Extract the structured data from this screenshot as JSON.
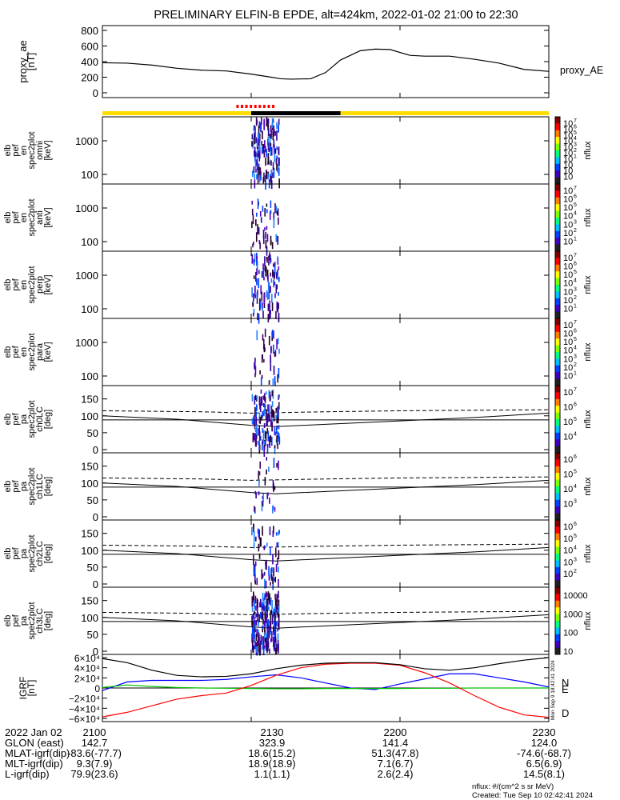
{
  "title": "PRELIMINARY ELFIN-B EPDE, alt=424km, 2022-01-02 21:00 to 22:30",
  "time_range": [
    "21:00",
    "22:30"
  ],
  "chart_data": [
    {
      "id": "proxy_ae",
      "type": "line",
      "ylabel": [
        "proxy_ae",
        "[nT]"
      ],
      "legend": "proxy_AE",
      "ylim": [
        0,
        800
      ],
      "yticks": [
        "800",
        "600",
        "400",
        "200",
        "0"
      ],
      "x_minutes": [
        0,
        5,
        10,
        15,
        20,
        25,
        30,
        33,
        36,
        38,
        42,
        45,
        48,
        52,
        55,
        58,
        62,
        65,
        70,
        75,
        80,
        85,
        90
      ],
      "values": [
        385,
        380,
        355,
        315,
        290,
        280,
        240,
        210,
        180,
        175,
        180,
        260,
        420,
        540,
        560,
        555,
        480,
        470,
        470,
        430,
        380,
        300,
        275
      ]
    },
    {
      "id": "flags",
      "type": "bar",
      "description_values": {
        "yellow": [
          0,
          90
        ],
        "black": [
          30,
          48
        ],
        "red_dashed": [
          27,
          35
        ]
      }
    },
    {
      "id": "spec_omni",
      "type": "heatmap",
      "ylabel": [
        "elb",
        "pef",
        "en",
        "spec2plot",
        "omni",
        "[keV]"
      ],
      "yticks": [
        "1000",
        "100"
      ],
      "colorbar": {
        "label": "nflux",
        "ticks": [
          "10",
          "10",
          "10",
          "10",
          "10",
          "10",
          "10",
          "10",
          "10",
          "10"
        ],
        "exps": [
          "7",
          "6",
          "5",
          "4",
          "3",
          "2",
          "1",
          "",
          "",
          ""
        ]
      }
    },
    {
      "id": "spec_anti",
      "type": "heatmap",
      "ylabel": [
        "elb",
        "pef",
        "en",
        "spec2plot",
        "anti",
        "[keV]"
      ],
      "yticks": [
        "1000",
        "100"
      ],
      "colorbar": {
        "label": "nflux",
        "exps": [
          "7",
          "6",
          "5",
          "4",
          "3",
          "2",
          "1"
        ]
      }
    },
    {
      "id": "spec_perp",
      "type": "heatmap",
      "ylabel": [
        "elb",
        "pef",
        "en",
        "spec2plot",
        "perp",
        "[keV]"
      ],
      "yticks": [
        "1000",
        "100"
      ],
      "colorbar": {
        "label": "nflux",
        "exps": [
          "7",
          "6",
          "5",
          "4",
          "3",
          "2",
          "1"
        ]
      }
    },
    {
      "id": "spec_para",
      "type": "heatmap",
      "ylabel": [
        "elb",
        "pef",
        "en",
        "spec2plot",
        "para",
        "[keV]"
      ],
      "yticks": [
        "1000",
        "100"
      ],
      "colorbar": {
        "label": "nflux",
        "exps": [
          "7",
          "6",
          "5",
          "4",
          "3",
          "2",
          "1"
        ]
      }
    },
    {
      "id": "pa_ch0",
      "type": "heatmap",
      "ylabel": [
        "elb",
        "pef",
        "pa",
        "spec2plot",
        "ch0LC",
        "[deg]"
      ],
      "yticks": [
        "150",
        "100",
        "50",
        "0"
      ],
      "ylim": [
        0,
        180
      ],
      "colorbar": {
        "label": "nflux",
        "exps": [
          "7",
          "6",
          "5",
          "4"
        ]
      }
    },
    {
      "id": "pa_ch1",
      "type": "heatmap",
      "ylabel": [
        "elb",
        "pef",
        "pa",
        "spec2plot",
        "ch1LC",
        "[deg]"
      ],
      "yticks": [
        "150",
        "100",
        "50",
        "0"
      ],
      "ylim": [
        0,
        180
      ],
      "colorbar": {
        "label": "nflux",
        "exps": [
          "6",
          "5",
          "4",
          "3"
        ]
      }
    },
    {
      "id": "pa_ch2",
      "type": "heatmap",
      "ylabel": [
        "elb",
        "pef",
        "pa",
        "spec2plot",
        "ch2LC",
        "[deg]"
      ],
      "yticks": [
        "150",
        "100",
        "50",
        "0"
      ],
      "ylim": [
        0,
        180
      ],
      "colorbar": {
        "label": "nflux",
        "exps": [
          "6",
          "5",
          "4",
          "3",
          "2"
        ]
      }
    },
    {
      "id": "pa_ch3",
      "type": "heatmap",
      "ylabel": [
        "elb",
        "pef",
        "pa",
        "spec2plot",
        "ch3LC",
        "[deg]"
      ],
      "yticks": [
        "150",
        "100",
        "50",
        "0"
      ],
      "ylim": [
        0,
        180
      ],
      "colorbar": {
        "label": "nflux",
        "ticks": [
          "10000",
          "1000",
          "100",
          "10"
        ]
      }
    },
    {
      "id": "igrf",
      "type": "line",
      "ylabel": [
        "IGRF",
        "[nT]"
      ],
      "yticks": [
        "6×10⁴",
        "4×10⁴",
        "2×10⁴",
        "0",
        "−2×10⁴",
        "−4×10⁴",
        "−6×10⁴"
      ],
      "ylim": [
        -60000,
        60000
      ],
      "legend": [
        "N",
        "E",
        "D"
      ],
      "side_text": "Mon Sep  9 18:42:41 2024",
      "x_minutes": [
        0,
        5,
        10,
        15,
        20,
        25,
        30,
        35,
        40,
        45,
        50,
        55,
        60,
        65,
        70,
        75,
        80,
        85,
        90
      ],
      "series": [
        {
          "name": "N",
          "color": "#0000ff",
          "values": [
            -5000,
            12000,
            15000,
            15000,
            15000,
            17000,
            22000,
            26000,
            20000,
            10000,
            0,
            -3000,
            8000,
            18000,
            28000,
            28000,
            20000,
            12000,
            2000
          ]
        },
        {
          "name": "E",
          "color": "#00c000",
          "values": [
            1000,
            6000,
            3000,
            1000,
            0,
            -500,
            -1000,
            -1500,
            -1500,
            -1000,
            -1000,
            -1000,
            -1000,
            -500,
            -500,
            0,
            0,
            0,
            0
          ]
        },
        {
          "name": "D",
          "color": "#ff0000",
          "values": [
            -57000,
            -48000,
            -35000,
            -22000,
            -15000,
            -10000,
            5000,
            25000,
            40000,
            47000,
            49000,
            49000,
            45000,
            30000,
            10000,
            -15000,
            -38000,
            -53000,
            -58000
          ]
        },
        {
          "name": "total",
          "color": "#000000",
          "values": [
            58000,
            50000,
            35000,
            25000,
            22000,
            23000,
            28000,
            38000,
            45000,
            49000,
            50000,
            50000,
            46000,
            38000,
            35000,
            40000,
            48000,
            55000,
            60000
          ]
        }
      ]
    }
  ],
  "x_ticks": [
    "2100",
    "2130",
    "2200",
    "2230"
  ],
  "ephemeris": [
    {
      "label": "2022 Jan 02",
      "values": [
        "2100",
        "2130",
        "2200",
        "2230"
      ]
    },
    {
      "label": "GLON (east)",
      "values": [
        "142.7",
        "323.9",
        "141.4",
        "124.0"
      ]
    },
    {
      "label": "MLAT-igrf(dip)",
      "values": [
        "-83.6(-77.7)",
        "18.6(15.2)",
        "51.3(47.8)",
        "-74.6(-68.7)"
      ]
    },
    {
      "label": "MLT-igrf(dip)",
      "values": [
        "9.3(7.9)",
        "18.9(18.9)",
        "7.1(6.7)",
        "6.5(6.9)"
      ]
    },
    {
      "label": "L-igrf(dip)",
      "values": [
        "79.9(23.6)",
        "1.1(1.1)",
        "2.6(2.4)",
        "14.5(8.1)"
      ]
    }
  ],
  "footer": {
    "units": "nflux: #/(cm^2 s sr MeV)",
    "created": "Created: Tue Sep 10 02:42:41 2024"
  },
  "colors": {
    "yellow": "#ffdd00",
    "red": "#ff0000",
    "black": "#000000"
  }
}
